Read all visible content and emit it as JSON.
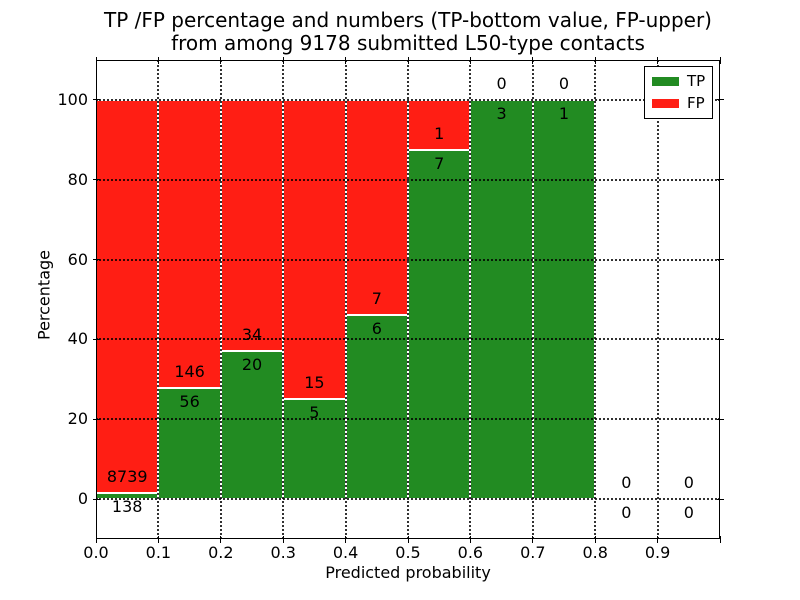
{
  "title": {
    "line1": "TP /FP percentage and numbers (TP-bottom value, FP-upper)",
    "line2": "from among 9178 submitted L50-type contacts"
  },
  "chart_data": {
    "type": "bar",
    "stacked": true,
    "title": "TP /FP percentage and numbers (TP-bottom value, FP-upper) from among 9178 submitted L50-type contacts",
    "xlabel": "Predicted probability",
    "ylabel": "Percentage",
    "xlim": [
      0.0,
      1.0
    ],
    "ylim": [
      -10,
      110
    ],
    "xticks": [
      0.0,
      0.1,
      0.2,
      0.3,
      0.4,
      0.5,
      0.6,
      0.7,
      0.8,
      0.9
    ],
    "xtick_labels": [
      "0.0",
      "0.1",
      "0.2",
      "0.3",
      "0.4",
      "0.5",
      "0.6",
      "0.7",
      "0.8",
      "0.9"
    ],
    "yticks": [
      0,
      20,
      40,
      60,
      80,
      100
    ],
    "ytick_labels": [
      "0",
      "20",
      "40",
      "60",
      "80",
      "100"
    ],
    "grid": "dotted",
    "legend_position": "upper right",
    "total_contacts": 9178,
    "series": [
      {
        "name": "TP",
        "color": "#228b22",
        "position": "bottom"
      },
      {
        "name": "FP",
        "color": "#ff1e14",
        "position": "top"
      }
    ],
    "bins": [
      {
        "range": [
          0.0,
          0.1
        ],
        "tp": 138,
        "fp": 8739,
        "tp_pct": 1.55,
        "fp_pct": 98.45
      },
      {
        "range": [
          0.1,
          0.2
        ],
        "tp": 56,
        "fp": 146,
        "tp_pct": 27.72,
        "fp_pct": 72.28
      },
      {
        "range": [
          0.2,
          0.3
        ],
        "tp": 20,
        "fp": 34,
        "tp_pct": 37.04,
        "fp_pct": 62.96
      },
      {
        "range": [
          0.3,
          0.4
        ],
        "tp": 5,
        "fp": 15,
        "tp_pct": 25.0,
        "fp_pct": 75.0
      },
      {
        "range": [
          0.4,
          0.5
        ],
        "tp": 6,
        "fp": 7,
        "tp_pct": 46.15,
        "fp_pct": 53.85
      },
      {
        "range": [
          0.5,
          0.6
        ],
        "tp": 7,
        "fp": 1,
        "tp_pct": 87.5,
        "fp_pct": 12.5
      },
      {
        "range": [
          0.6,
          0.7
        ],
        "tp": 3,
        "fp": 0,
        "tp_pct": 100.0,
        "fp_pct": 0.0
      },
      {
        "range": [
          0.7,
          0.8
        ],
        "tp": 1,
        "fp": 0,
        "tp_pct": 100.0,
        "fp_pct": 0.0
      },
      {
        "range": [
          0.8,
          0.9
        ],
        "tp": 0,
        "fp": 0,
        "tp_pct": null,
        "fp_pct": null
      },
      {
        "range": [
          0.9,
          1.0
        ],
        "tp": 0,
        "fp": 0,
        "tp_pct": null,
        "fp_pct": null
      }
    ]
  }
}
